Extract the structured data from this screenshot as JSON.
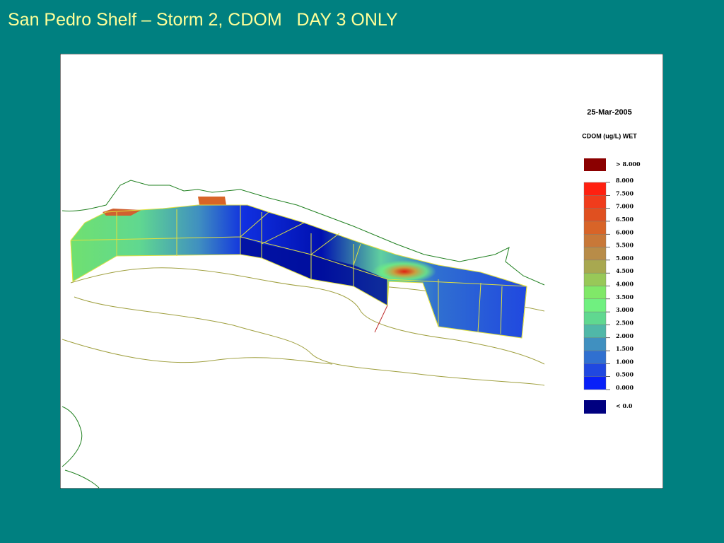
{
  "title": "San Pedro Shelf – Storm 2, CDOM   DAY 3 ONLY",
  "legend": {
    "date": "25-Mar-2005",
    "variable": "CDOM (ug/L) WET",
    "above": {
      "label": "> 8.000",
      "color": "#8b0000"
    },
    "scale": {
      "labels": [
        "8.000",
        "7.500",
        "7.000",
        "6.500",
        "6.000",
        "5.500",
        "5.000",
        "4.500",
        "4.000",
        "3.500",
        "3.000",
        "2.500",
        "2.000",
        "1.500",
        "1.000",
        "0.500",
        "0.000"
      ],
      "colors": [
        "#ff2010",
        "#f03c1c",
        "#e05020",
        "#d86428",
        "#c87838",
        "#b88c48",
        "#a8a850",
        "#98c858",
        "#80e868",
        "#70f080",
        "#60d890",
        "#50b8a8",
        "#4090c0",
        "#3070d0",
        "#2048e0",
        "#0820f8"
      ]
    },
    "below": {
      "label": "< 0.0",
      "color": "#000080"
    }
  }
}
